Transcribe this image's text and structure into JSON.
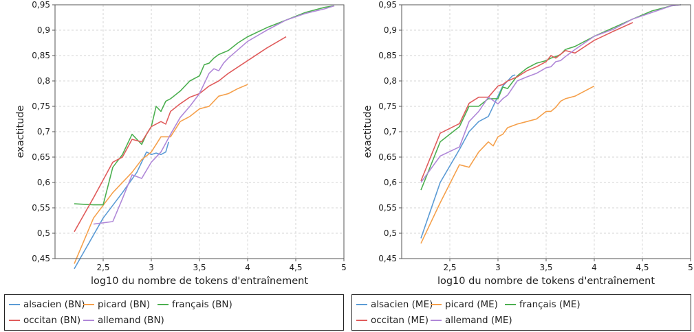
{
  "chart_data": [
    {
      "type": "line",
      "title": "",
      "xlabel": "log10 du nombre de tokens d'entraînement",
      "ylabel": "exactitude",
      "xlim": [
        2.0,
        5.0
      ],
      "ylim": [
        0.45,
        0.95
      ],
      "grid": true,
      "legend_position": "bottom",
      "x_ticks": [
        "2,5",
        "3",
        "3,5",
        "4",
        "4,5",
        "5"
      ],
      "x_tick_values": [
        2.5,
        3,
        3.5,
        4,
        4.5,
        5
      ],
      "y_ticks": [
        "0,45",
        "0,5",
        "0,55",
        "0,6",
        "0,65",
        "0,7",
        "0,75",
        "0,8",
        "0,85",
        "0,9",
        "0,95"
      ],
      "y_tick_values": [
        0.45,
        0.5,
        0.55,
        0.6,
        0.65,
        0.7,
        0.75,
        0.8,
        0.85,
        0.9,
        0.95
      ],
      "series": [
        {
          "name": "alsacien (BN)",
          "color": "#5b9bd5",
          "x": [
            2.2,
            2.5,
            2.7,
            2.85,
            2.95,
            3.0,
            3.05,
            3.1,
            3.15,
            3.18
          ],
          "y": [
            0.43,
            0.53,
            0.58,
            0.62,
            0.66,
            0.655,
            0.658,
            0.655,
            0.66,
            0.68
          ]
        },
        {
          "name": "picard (BN)",
          "color": "#f5a04b",
          "x": [
            2.2,
            2.4,
            2.6,
            2.8,
            2.9,
            3.0,
            3.1,
            3.2,
            3.3,
            3.4,
            3.5,
            3.6,
            3.65,
            3.7,
            3.8,
            3.9,
            4.0
          ],
          "y": [
            0.44,
            0.53,
            0.58,
            0.62,
            0.645,
            0.66,
            0.69,
            0.69,
            0.72,
            0.73,
            0.745,
            0.75,
            0.76,
            0.77,
            0.775,
            0.785,
            0.793
          ]
        },
        {
          "name": "français (BN)",
          "color": "#4caf50",
          "x": [
            2.2,
            2.4,
            2.5,
            2.6,
            2.7,
            2.8,
            2.9,
            2.95,
            3.0,
            3.05,
            3.1,
            3.15,
            3.2,
            3.3,
            3.4,
            3.5,
            3.55,
            3.6,
            3.65,
            3.7,
            3.8,
            3.9,
            4.0,
            4.2,
            4.4,
            4.6,
            4.8,
            4.9
          ],
          "y": [
            0.558,
            0.556,
            0.556,
            0.63,
            0.655,
            0.695,
            0.675,
            0.695,
            0.71,
            0.75,
            0.74,
            0.76,
            0.765,
            0.78,
            0.8,
            0.81,
            0.832,
            0.835,
            0.845,
            0.852,
            0.86,
            0.875,
            0.887,
            0.905,
            0.92,
            0.935,
            0.945,
            0.948
          ]
        },
        {
          "name": "occitan (BN)",
          "color": "#e05c5c",
          "x": [
            2.2,
            2.4,
            2.6,
            2.7,
            2.8,
            2.9,
            3.0,
            3.1,
            3.15,
            3.2,
            3.3,
            3.4,
            3.5,
            3.6,
            3.7,
            3.8,
            4.0,
            4.2,
            4.4
          ],
          "y": [
            0.503,
            0.57,
            0.64,
            0.65,
            0.685,
            0.68,
            0.71,
            0.72,
            0.715,
            0.74,
            0.755,
            0.768,
            0.775,
            0.79,
            0.8,
            0.815,
            0.84,
            0.865,
            0.887
          ]
        },
        {
          "name": "allemand (BN)",
          "color": "#b088d8",
          "x": [
            2.4,
            2.6,
            2.7,
            2.8,
            2.9,
            3.0,
            3.1,
            3.2,
            3.3,
            3.4,
            3.5,
            3.55,
            3.6,
            3.65,
            3.7,
            3.75,
            3.8,
            4.0,
            4.2,
            4.4,
            4.6,
            4.8,
            4.9
          ],
          "y": [
            0.518,
            0.523,
            0.568,
            0.615,
            0.608,
            0.64,
            0.66,
            0.695,
            0.728,
            0.75,
            0.775,
            0.795,
            0.815,
            0.824,
            0.82,
            0.835,
            0.845,
            0.878,
            0.9,
            0.92,
            0.933,
            0.942,
            0.948
          ]
        }
      ]
    },
    {
      "type": "line",
      "title": "",
      "xlabel": "log10 du nombre de tokens d'entraînement",
      "ylabel": "exactitude",
      "xlim": [
        2.0,
        5.0
      ],
      "ylim": [
        0.45,
        0.95
      ],
      "grid": true,
      "legend_position": "bottom",
      "x_ticks": [
        "2,5",
        "3",
        "3,5",
        "4",
        "4,5",
        "5"
      ],
      "x_tick_values": [
        2.5,
        3,
        3.5,
        4,
        4.5,
        5
      ],
      "y_ticks": [
        "0,45",
        "0,5",
        "0,55",
        "0,6",
        "0,65",
        "0,7",
        "0,75",
        "0,8",
        "0,85",
        "0,9",
        "0,95"
      ],
      "y_tick_values": [
        0.45,
        0.5,
        0.55,
        0.6,
        0.65,
        0.7,
        0.75,
        0.8,
        0.85,
        0.9,
        0.95
      ],
      "series": [
        {
          "name": "alsacien (ME)",
          "color": "#5b9bd5",
          "x": [
            2.2,
            2.4,
            2.6,
            2.7,
            2.8,
            2.9,
            3.0,
            3.05,
            3.1,
            3.15,
            3.18
          ],
          "y": [
            0.49,
            0.6,
            0.665,
            0.7,
            0.72,
            0.73,
            0.77,
            0.79,
            0.8,
            0.81,
            0.812
          ]
        },
        {
          "name": "picard (ME)",
          "color": "#f5a04b",
          "x": [
            2.2,
            2.4,
            2.6,
            2.7,
            2.8,
            2.85,
            2.9,
            2.95,
            3.0,
            3.05,
            3.1,
            3.2,
            3.3,
            3.4,
            3.5,
            3.55,
            3.6,
            3.65,
            3.7,
            3.8,
            3.9,
            4.0
          ],
          "y": [
            0.48,
            0.56,
            0.635,
            0.63,
            0.66,
            0.67,
            0.68,
            0.672,
            0.69,
            0.695,
            0.708,
            0.715,
            0.72,
            0.725,
            0.74,
            0.74,
            0.748,
            0.76,
            0.765,
            0.77,
            0.78,
            0.79
          ]
        },
        {
          "name": "français (ME)",
          "color": "#4caf50",
          "x": [
            2.2,
            2.4,
            2.6,
            2.7,
            2.8,
            2.9,
            3.0,
            3.05,
            3.1,
            3.2,
            3.3,
            3.4,
            3.5,
            3.55,
            3.6,
            3.65,
            3.7,
            3.8,
            4.0,
            4.2,
            4.4,
            4.6,
            4.8,
            4.9
          ],
          "y": [
            0.585,
            0.68,
            0.71,
            0.75,
            0.75,
            0.765,
            0.765,
            0.788,
            0.785,
            0.81,
            0.825,
            0.835,
            0.84,
            0.845,
            0.848,
            0.852,
            0.862,
            0.868,
            0.888,
            0.905,
            0.922,
            0.938,
            0.948,
            0.95
          ]
        },
        {
          "name": "occitan (ME)",
          "color": "#e05c5c",
          "x": [
            2.2,
            2.4,
            2.6,
            2.7,
            2.8,
            2.9,
            3.0,
            3.05,
            3.1,
            3.2,
            3.3,
            3.4,
            3.5,
            3.55,
            3.6,
            3.7,
            3.8,
            4.0,
            4.2,
            4.4
          ],
          "y": [
            0.603,
            0.697,
            0.716,
            0.756,
            0.768,
            0.768,
            0.79,
            0.793,
            0.8,
            0.808,
            0.82,
            0.828,
            0.838,
            0.85,
            0.845,
            0.86,
            0.855,
            0.88,
            0.898,
            0.915
          ]
        },
        {
          "name": "allemand (ME)",
          "color": "#b088d8",
          "x": [
            2.2,
            2.4,
            2.6,
            2.7,
            2.8,
            2.9,
            3.0,
            3.05,
            3.1,
            3.2,
            3.3,
            3.4,
            3.5,
            3.55,
            3.6,
            3.65,
            3.7,
            3.8,
            4.0,
            4.2,
            4.4,
            4.6,
            4.8,
            4.9
          ],
          "y": [
            0.6,
            0.652,
            0.67,
            0.72,
            0.74,
            0.768,
            0.755,
            0.765,
            0.772,
            0.8,
            0.808,
            0.815,
            0.826,
            0.828,
            0.838,
            0.84,
            0.848,
            0.862,
            0.888,
            0.902,
            0.922,
            0.935,
            0.948,
            0.95
          ]
        }
      ]
    }
  ]
}
